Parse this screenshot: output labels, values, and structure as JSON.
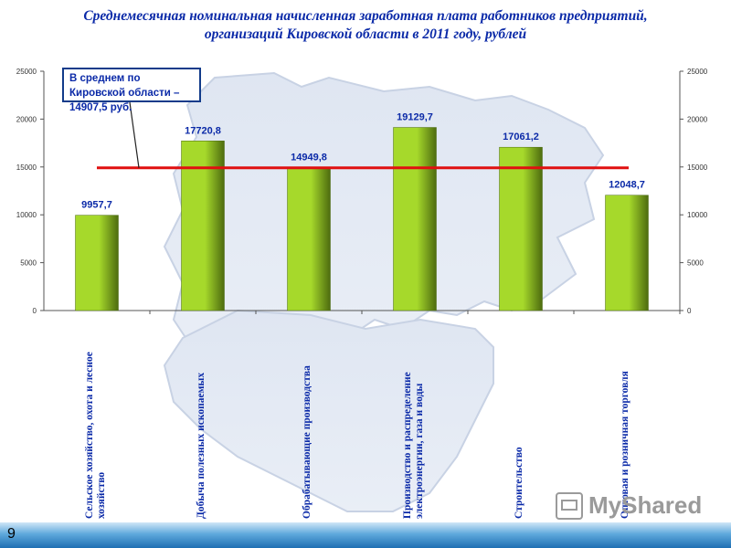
{
  "title_line1": "Среднемесячная  номинальная начисленная заработная плата работников предприятий,",
  "title_line2": "организаций Кировской области в 2011 году, рублей",
  "callout": "В среднем по Кировской области – 14907,5 руб.",
  "slide_number": "9",
  "watermark": "MyShared",
  "colors": {
    "bar_light": "#a6d92b",
    "bar_dark": "#4d6b0f",
    "avg_line": "#e01010",
    "text": "#0b2aa8",
    "axis": "#555555"
  },
  "chart_data": {
    "type": "bar",
    "categories": [
      "Сельское хозяйство, охота и лесное\nхозяйство",
      "Добыча полезных ископаемых",
      "Обрабатывающие производства",
      "Производство и распределение\nэлектроэнергии, газа и воды",
      "Строительство",
      "Оптовая и розничная торговля"
    ],
    "values": [
      9957.7,
      17720.8,
      14949.8,
      19129.7,
      17061.2,
      12048.7
    ],
    "data_labels": [
      "9957,7",
      "17720,8",
      "14949,8",
      "19129,7",
      "17061,2",
      "12048,7"
    ],
    "average": 14907.5,
    "ylim": [
      0,
      25000
    ],
    "yticks": [
      "0",
      "5000",
      "10000",
      "15000",
      "20000",
      "25000"
    ],
    "secondary_axis": true,
    "grid": false,
    "title": "",
    "xlabel": "",
    "ylabel": ""
  }
}
